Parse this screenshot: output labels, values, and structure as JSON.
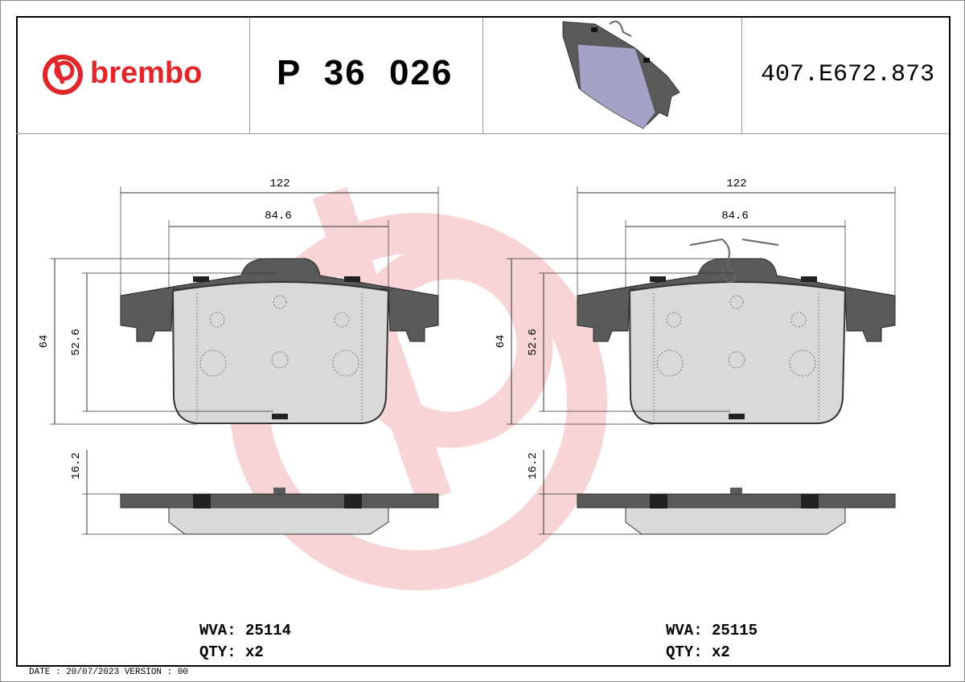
{
  "header": {
    "brand": "brembo",
    "part_number": "P 36 026",
    "reference": "407.E672.873"
  },
  "drawings": [
    {
      "dimensions": {
        "width_total": "122",
        "width_pad": "84.6",
        "height_total": "64",
        "height_pad": "52.6",
        "thickness": "16.2"
      },
      "wva_label": "WVA:",
      "wva": "25114",
      "qty_label": "QTY:",
      "qty": "x2"
    },
    {
      "dimensions": {
        "width_total": "122",
        "width_pad": "84.6",
        "height_total": "64",
        "height_pad": "52.6",
        "thickness": "16.2"
      },
      "wva_label": "WVA:",
      "wva": "25115",
      "qty_label": "QTY:",
      "qty": "x2"
    }
  ],
  "footer": {
    "date_version": "DATE : 20/07/2023 VERSION : 00"
  },
  "colors": {
    "brand_red": "#e0252b",
    "watermark": "#f7d5d7",
    "backplate": "#5a5a5a",
    "friction": "#d9d9d9",
    "thumbnail_pad": "#a3a3c8"
  }
}
